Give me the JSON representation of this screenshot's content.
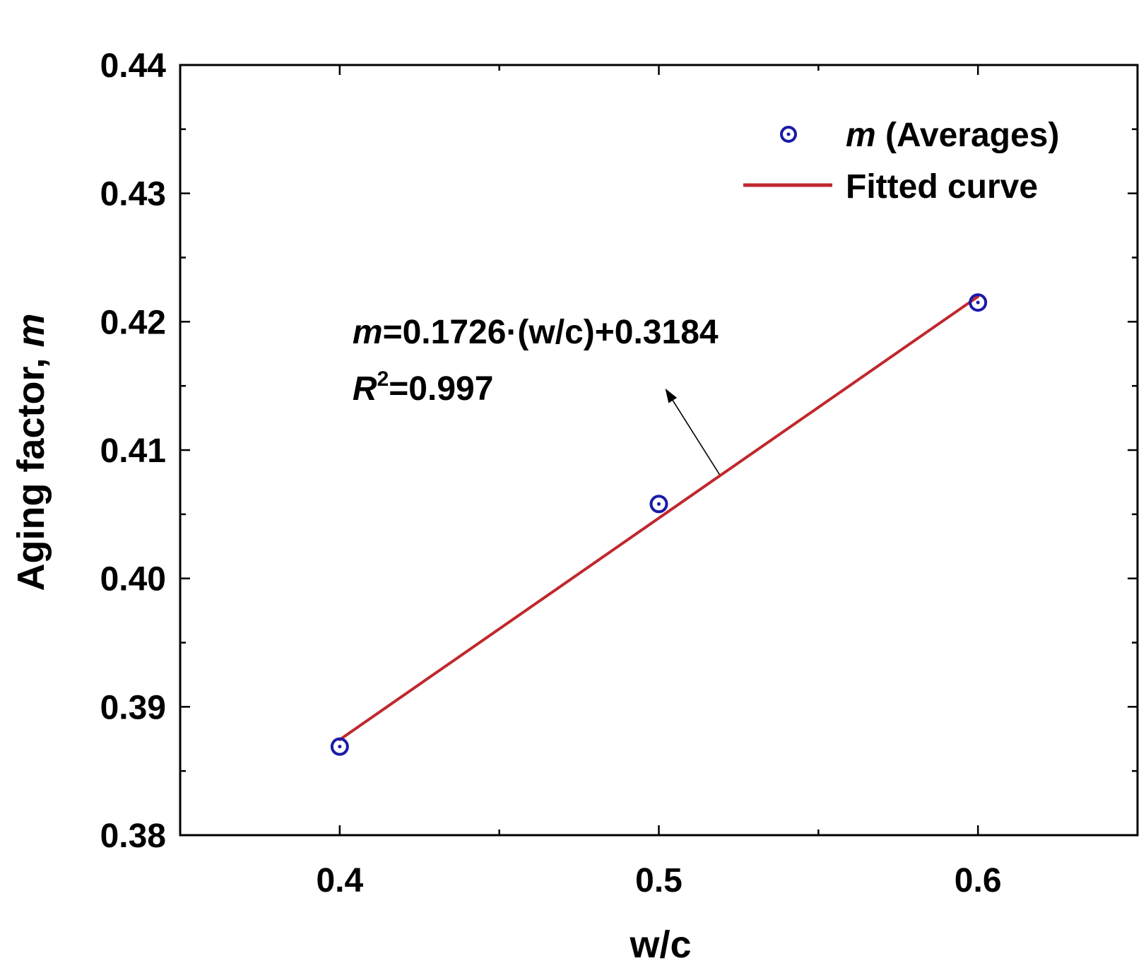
{
  "chart_data": {
    "type": "scatter",
    "title": "",
    "xlabel": "w/c",
    "ylabel": "Aging factor, ",
    "ylabel_var": "m",
    "xlim": [
      0.35,
      0.65
    ],
    "ylim": [
      0.38,
      0.44
    ],
    "x_ticks": [
      "0.4",
      "0.5",
      "0.6"
    ],
    "y_ticks": [
      "0.38",
      "0.39",
      "0.40",
      "0.41",
      "0.42",
      "0.43",
      "0.44"
    ],
    "grid": false,
    "legend_position": "top-right",
    "series": [
      {
        "name": "m (Averages)",
        "name_var": "m",
        "name_rest": " (Averages)",
        "kind": "scatter",
        "marker": "circle-dot",
        "color": "#1a1aa8",
        "x": [
          0.4,
          0.5,
          0.6
        ],
        "y": [
          0.3869,
          0.4058,
          0.4215
        ]
      },
      {
        "name": "Fitted curve",
        "kind": "line",
        "color": "#c0282d",
        "slope": 0.1726,
        "intercept": 0.3184,
        "x_range": [
          0.4,
          0.6
        ]
      }
    ],
    "annotation": {
      "equation_var": "m",
      "equation_rest": "=0.1726·(w/c)+0.3184",
      "r2_var": "R",
      "r2_sup": "2",
      "r2_rest": "=0.997",
      "arrow_from": [
        0.519,
        0.4081
      ],
      "arrow_to": [
        0.502,
        0.4148
      ],
      "text_at": [
        0.404,
        0.4183
      ]
    }
  }
}
